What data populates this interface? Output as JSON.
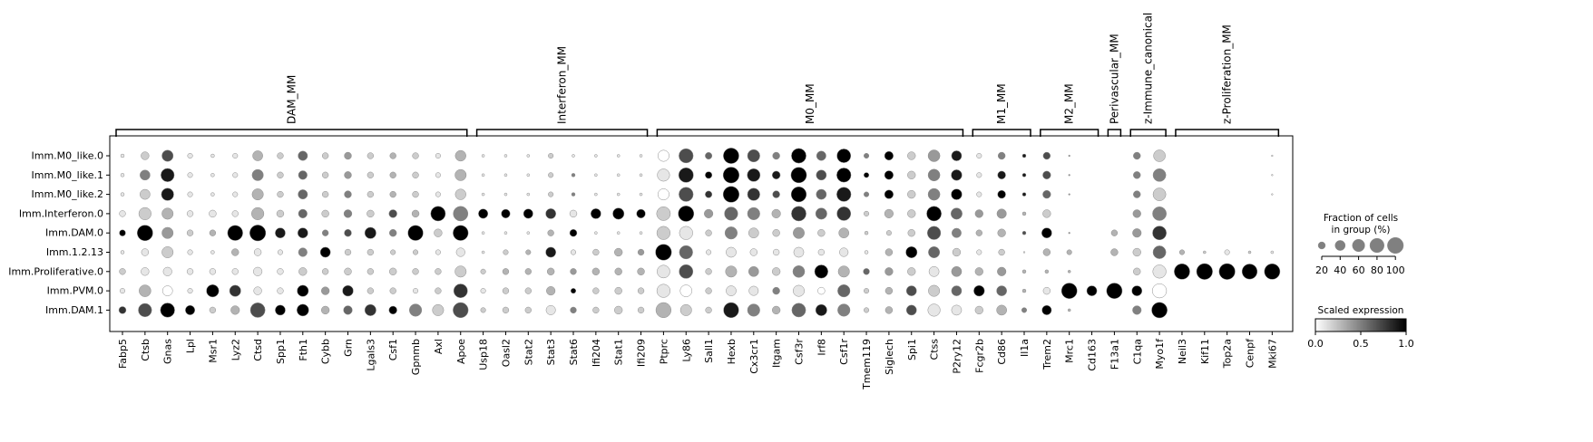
{
  "chart_data": {
    "type": "dotplot",
    "groups": [
      {
        "name": "DAM_MM",
        "start": 0,
        "end": 15
      },
      {
        "name": "Interferon_MM",
        "start": 16,
        "end": 23
      },
      {
        "name": "M0_MM",
        "start": 24,
        "end": 37
      },
      {
        "name": "M1_MM",
        "start": 38,
        "end": 40
      },
      {
        "name": "M2_MM",
        "start": 41,
        "end": 43
      },
      {
        "name": "Perivascular_MM",
        "start": 44,
        "end": 44
      },
      {
        "name": "z-Immune_canonical",
        "start": 45,
        "end": 46
      },
      {
        "name": "z-Proliferation_MM",
        "start": 47,
        "end": 51
      }
    ],
    "genes": [
      "Fabp5",
      "Ctsb",
      "Gnas",
      "Lpl",
      "Msr1",
      "Lyz2",
      "Ctsd",
      "Spp1",
      "Fth1",
      "Cybb",
      "Grn",
      "Lgals3",
      "Csf1",
      "Gpnmb",
      "Axl",
      "Apoe",
      "Usp18",
      "Oasl2",
      "Stat2",
      "Stat3",
      "Stat6",
      "Ifi204",
      "Stat1",
      "Ifi209",
      "Ptprc",
      "Ly86",
      "Sall1",
      "Hexb",
      "Cx3cr1",
      "Itgam",
      "Csf3r",
      "Irf8",
      "Csf1r",
      "Tmem119",
      "Siglech",
      "Spi1",
      "Ctss",
      "P2ry12",
      "Fcgr2b",
      "Cd86",
      "Il1a",
      "Trem2",
      "Mrc1",
      "Cd163",
      "F13a1",
      "C1qa",
      "Myo1f",
      "Neil3",
      "Kif11",
      "Top2a",
      "Cenpf",
      "Mki67"
    ],
    "clusters": [
      "Imm.M0_like.0",
      "Imm.M0_like.1",
      "Imm.M0_like.2",
      "Imm.Interferon.0",
      "Imm.DAM.0",
      "Imm.1.2.13",
      "Imm.Proliferative.0",
      "Imm.PVM.0",
      "Imm.DAM.1"
    ],
    "fraction": [
      [
        5,
        25,
        50,
        10,
        5,
        10,
        40,
        15,
        35,
        15,
        20,
        15,
        15,
        15,
        10,
        45,
        3,
        3,
        3,
        10,
        3,
        3,
        3,
        3,
        50,
        80,
        18,
        95,
        60,
        20,
        85,
        35,
        75,
        10,
        30,
        25,
        55,
        40,
        10,
        20,
        5,
        20,
        1,
        0,
        0,
        20,
        55,
        0,
        0,
        0,
        0,
        1
      ],
      [
        5,
        40,
        70,
        10,
        5,
        10,
        50,
        15,
        30,
        15,
        20,
        15,
        15,
        15,
        10,
        50,
        3,
        3,
        3,
        10,
        5,
        3,
        3,
        3,
        60,
        85,
        18,
        100,
        65,
        25,
        95,
        40,
        80,
        10,
        30,
        25,
        55,
        45,
        10,
        25,
        5,
        25,
        1,
        0,
        0,
        20,
        65,
        0,
        0,
        0,
        0,
        1
      ],
      [
        5,
        40,
        60,
        10,
        5,
        10,
        50,
        15,
        35,
        15,
        20,
        15,
        15,
        15,
        10,
        45,
        3,
        3,
        3,
        10,
        5,
        3,
        3,
        3,
        50,
        80,
        18,
        100,
        60,
        20,
        90,
        40,
        80,
        10,
        30,
        25,
        55,
        45,
        10,
        25,
        5,
        25,
        1,
        0,
        0,
        20,
        65,
        0,
        0,
        0,
        0,
        1
      ],
      [
        15,
        60,
        50,
        15,
        20,
        15,
        60,
        20,
        30,
        20,
        25,
        20,
        25,
        20,
        85,
        85,
        35,
        30,
        35,
        40,
        20,
        40,
        50,
        30,
        75,
        95,
        30,
        70,
        60,
        30,
        85,
        50,
        75,
        10,
        30,
        25,
        85,
        50,
        25,
        35,
        5,
        25,
        0,
        0,
        0,
        25,
        75,
        0,
        0,
        0,
        0,
        0
      ],
      [
        15,
        95,
        50,
        15,
        15,
        90,
        100,
        40,
        40,
        15,
        20,
        50,
        20,
        90,
        25,
        90,
        3,
        3,
        3,
        15,
        20,
        3,
        3,
        3,
        70,
        70,
        15,
        60,
        40,
        20,
        50,
        20,
        40,
        5,
        10,
        20,
        70,
        35,
        15,
        25,
        5,
        40,
        1,
        0,
        15,
        30,
        75,
        0,
        0,
        0,
        0,
        0
      ],
      [
        5,
        20,
        50,
        10,
        5,
        20,
        20,
        10,
        30,
        40,
        15,
        15,
        10,
        10,
        10,
        30,
        3,
        10,
        10,
        40,
        10,
        15,
        25,
        15,
        100,
        70,
        10,
        40,
        20,
        15,
        40,
        15,
        30,
        5,
        20,
        50,
        50,
        25,
        10,
        15,
        1,
        20,
        10,
        0,
        20,
        25,
        65,
        10,
        3,
        10,
        3,
        3
      ],
      [
        15,
        25,
        30,
        15,
        15,
        15,
        30,
        15,
        25,
        15,
        20,
        15,
        20,
        15,
        15,
        50,
        10,
        15,
        15,
        20,
        15,
        20,
        20,
        20,
        65,
        75,
        15,
        50,
        40,
        25,
        55,
        70,
        50,
        15,
        25,
        25,
        40,
        40,
        25,
        30,
        5,
        5,
        3,
        0,
        0,
        20,
        70,
        95,
        100,
        100,
        90,
        95
      ],
      [
        10,
        55,
        40,
        10,
        60,
        50,
        25,
        15,
        50,
        25,
        45,
        15,
        15,
        10,
        15,
        75,
        10,
        15,
        15,
        30,
        10,
        15,
        20,
        15,
        70,
        55,
        15,
        40,
        35,
        20,
        50,
        20,
        60,
        10,
        20,
        40,
        50,
        40,
        45,
        40,
        5,
        20,
        95,
        40,
        95,
        40,
        80,
        0,
        0,
        0,
        0,
        0
      ],
      [
        20,
        70,
        80,
        35,
        15,
        30,
        85,
        40,
        55,
        25,
        30,
        50,
        25,
        60,
        50,
        90,
        10,
        15,
        15,
        35,
        15,
        15,
        25,
        15,
        90,
        50,
        15,
        90,
        60,
        25,
        75,
        50,
        60,
        10,
        20,
        40,
        60,
        40,
        25,
        40,
        10,
        35,
        3,
        0,
        0,
        30,
        95,
        0,
        0,
        0,
        0,
        0
      ]
    ],
    "expression": [
      [
        0.1,
        0.2,
        0.7,
        0.1,
        0.1,
        0.1,
        0.3,
        0.2,
        0.6,
        0.2,
        0.4,
        0.2,
        0.3,
        0.2,
        0.1,
        0.3,
        0.1,
        0.1,
        0.1,
        0.2,
        0.1,
        0.1,
        0.1,
        0.1,
        0.0,
        0.7,
        0.6,
        1.0,
        0.7,
        0.5,
        1.0,
        0.6,
        1.0,
        0.5,
        1.0,
        0.2,
        0.4,
        0.9,
        0.1,
        0.5,
        0.9,
        0.7,
        0.4,
        0,
        0,
        0.5,
        0.2,
        0,
        0,
        0,
        0,
        0.1
      ],
      [
        0.1,
        0.5,
        0.9,
        0.1,
        0.1,
        0.1,
        0.5,
        0.2,
        0.6,
        0.2,
        0.4,
        0.2,
        0.3,
        0.2,
        0.1,
        0.3,
        0.1,
        0.1,
        0.1,
        0.2,
        0.5,
        0.1,
        0.1,
        0.1,
        0.1,
        0.9,
        1.0,
        1.0,
        0.9,
        0.9,
        1.0,
        0.7,
        1.0,
        1.0,
        1.0,
        0.2,
        0.5,
        0.9,
        0.1,
        0.9,
        0.9,
        0.7,
        0.4,
        0,
        0,
        0.5,
        0.5,
        0,
        0,
        0,
        0,
        0.1
      ],
      [
        0.1,
        0.2,
        0.9,
        0.1,
        0.1,
        0.1,
        0.3,
        0.2,
        0.6,
        0.2,
        0.5,
        0.2,
        0.3,
        0.2,
        0.1,
        0.2,
        0.1,
        0.1,
        0.1,
        0.2,
        0.5,
        0.1,
        0.1,
        0.1,
        0.0,
        0.7,
        0.8,
        1.0,
        0.8,
        0.7,
        1.0,
        0.6,
        0.9,
        0.5,
        1.0,
        0.2,
        0.5,
        1.0,
        0.1,
        1.0,
        0.9,
        0.6,
        0.4,
        0,
        0,
        0.5,
        0.2,
        0,
        0,
        0,
        0,
        0.1
      ],
      [
        0.1,
        0.2,
        0.3,
        0.1,
        0.1,
        0.1,
        0.3,
        0.2,
        0.6,
        0.2,
        0.5,
        0.2,
        0.7,
        0.3,
        1.0,
        0.5,
        1.0,
        1.0,
        1.0,
        0.8,
        0.1,
        1.0,
        1.0,
        1.0,
        0.2,
        1.0,
        0.4,
        0.6,
        0.5,
        0.3,
        0.8,
        0.6,
        0.8,
        0.2,
        0.3,
        0.2,
        1.0,
        0.6,
        0.4,
        0.4,
        0.3,
        0.2,
        0,
        0,
        0,
        0.4,
        0.5,
        0,
        0,
        0,
        0,
        0
      ],
      [
        1.0,
        1.0,
        0.4,
        0.2,
        0.3,
        1.0,
        1.0,
        0.9,
        0.9,
        0.5,
        0.7,
        0.9,
        0.5,
        1.0,
        0.2,
        1.0,
        0.1,
        0.1,
        0.1,
        0.3,
        1.0,
        0.1,
        0.1,
        0.1,
        0.2,
        0.1,
        0.2,
        0.5,
        0.2,
        0.2,
        0.4,
        0.2,
        0.3,
        0.2,
        0.2,
        0.2,
        0.7,
        0.5,
        0.3,
        0.3,
        0.7,
        1.0,
        0.4,
        0,
        0.3,
        0.4,
        0.8,
        0,
        0,
        0,
        0,
        0
      ],
      [
        0.1,
        0.1,
        0.2,
        0.1,
        0.1,
        0.3,
        0.1,
        0.1,
        0.5,
        1.0,
        0.2,
        0.2,
        0.2,
        0.2,
        0.1,
        0.1,
        0.1,
        0.2,
        0.3,
        0.9,
        0.1,
        0.2,
        0.3,
        0.4,
        1.0,
        0.6,
        0.1,
        0.1,
        0.1,
        0.1,
        0.1,
        0.1,
        0.1,
        0.1,
        0.3,
        1.0,
        0.6,
        0.2,
        0.1,
        0.2,
        0.1,
        0.3,
        0.3,
        0,
        0.3,
        0.2,
        0.6,
        0.3,
        0.2,
        0.1,
        0.2,
        0.1
      ],
      [
        0.2,
        0.1,
        0.1,
        0.1,
        0.1,
        0.1,
        0.1,
        0.1,
        0.2,
        0.2,
        0.2,
        0.2,
        0.2,
        0.2,
        0.2,
        0.2,
        0.2,
        0.3,
        0.3,
        0.3,
        0.4,
        0.3,
        0.3,
        0.3,
        0.1,
        0.7,
        0.2,
        0.3,
        0.4,
        0.2,
        0.5,
        1.0,
        0.3,
        0.6,
        0.4,
        0.2,
        0.1,
        0.4,
        0.3,
        0.4,
        0.3,
        0.3,
        0.3,
        0,
        0,
        0.2,
        0.1,
        1.0,
        1.0,
        1.0,
        1.0,
        1.0
      ],
      [
        0.1,
        0.3,
        0.0,
        0.1,
        1.0,
        0.8,
        0.1,
        0.1,
        1.0,
        0.4,
        0.9,
        0.2,
        0.2,
        0.1,
        0.2,
        0.8,
        0.1,
        0.2,
        0.2,
        0.3,
        1.0,
        0.2,
        0.2,
        0.2,
        0.1,
        0.0,
        0.2,
        0.1,
        0.1,
        0.5,
        0.1,
        0.0,
        0.6,
        0.2,
        0.3,
        0.7,
        0.2,
        0.6,
        1.0,
        0.6,
        0.3,
        0.1,
        1.0,
        1.0,
        1.0,
        1.0,
        0.0,
        0,
        0,
        0,
        0,
        0
      ],
      [
        0.8,
        0.7,
        1.0,
        1.0,
        0.2,
        0.3,
        0.7,
        1.0,
        1.0,
        0.3,
        0.6,
        0.8,
        1.0,
        0.5,
        0.2,
        0.7,
        0.2,
        0.2,
        0.2,
        0.1,
        0.5,
        0.2,
        0.2,
        0.2,
        0.3,
        0.2,
        0.2,
        0.9,
        0.5,
        0.3,
        0.6,
        0.9,
        0.5,
        0.2,
        0.3,
        0.7,
        0.1,
        0.1,
        0.2,
        0.3,
        0.5,
        1.0,
        0.3,
        0,
        0,
        0.5,
        1.0,
        0,
        0,
        0,
        0,
        0
      ]
    ],
    "size_legend": {
      "title_lines": [
        "Fraction of cells",
        "in group (%)"
      ],
      "values": [
        20,
        40,
        60,
        80,
        100
      ]
    },
    "color_legend": {
      "title": "Scaled expression",
      "ticks": [
        "0.0",
        "0.5",
        "1.0"
      ],
      "colormap": "Greys",
      "range": [
        0,
        1
      ]
    }
  }
}
